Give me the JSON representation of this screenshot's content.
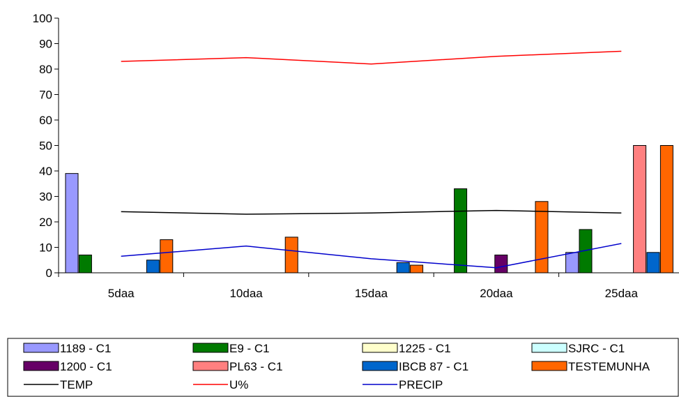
{
  "chart_data": {
    "type": "bar",
    "categories": [
      "5daa",
      "10daa",
      "15daa",
      "20daa",
      "25daa"
    ],
    "ylim": [
      0,
      100
    ],
    "yticks": [
      0,
      10,
      20,
      30,
      40,
      50,
      60,
      70,
      80,
      90,
      100
    ],
    "bar_series": [
      {
        "name": "1189 - C1",
        "color": "#9999FF",
        "values": [
          39,
          0,
          0,
          0,
          8
        ]
      },
      {
        "name": "E9 - C1",
        "color": "#007A00",
        "values": [
          7,
          0,
          0,
          33,
          17
        ]
      },
      {
        "name": "1225 - C1",
        "color": "#FFFFCC",
        "values": [
          0,
          0,
          0,
          0,
          0
        ]
      },
      {
        "name": "SJRC - C1",
        "color": "#CCFFFF",
        "values": [
          0,
          0,
          0,
          0,
          0
        ]
      },
      {
        "name": "1200 - C1",
        "color": "#660066",
        "values": [
          0,
          0,
          0,
          7,
          0
        ]
      },
      {
        "name": "PL63 - C1",
        "color": "#FF8080",
        "values": [
          0,
          0,
          0,
          0,
          50
        ]
      },
      {
        "name": "IBCB 87 - C1",
        "color": "#0066CC",
        "values": [
          5,
          0,
          4,
          0,
          8
        ]
      },
      {
        "name": "TESTEMUNHA",
        "color": "#FF6600",
        "values": [
          13,
          14,
          3,
          28,
          50
        ]
      }
    ],
    "line_series": [
      {
        "name": "TEMP",
        "color": "#000000",
        "values": [
          24,
          23,
          23.5,
          24.5,
          23.5
        ]
      },
      {
        "name": "U%",
        "color": "#FF0000",
        "values": [
          83,
          84.5,
          82,
          85,
          87
        ]
      },
      {
        "name": "PRECIP",
        "color": "#0000CC",
        "values": [
          6.5,
          10.5,
          5.5,
          2,
          11.5
        ]
      }
    ],
    "legend_position": "bottom",
    "grid": false
  }
}
